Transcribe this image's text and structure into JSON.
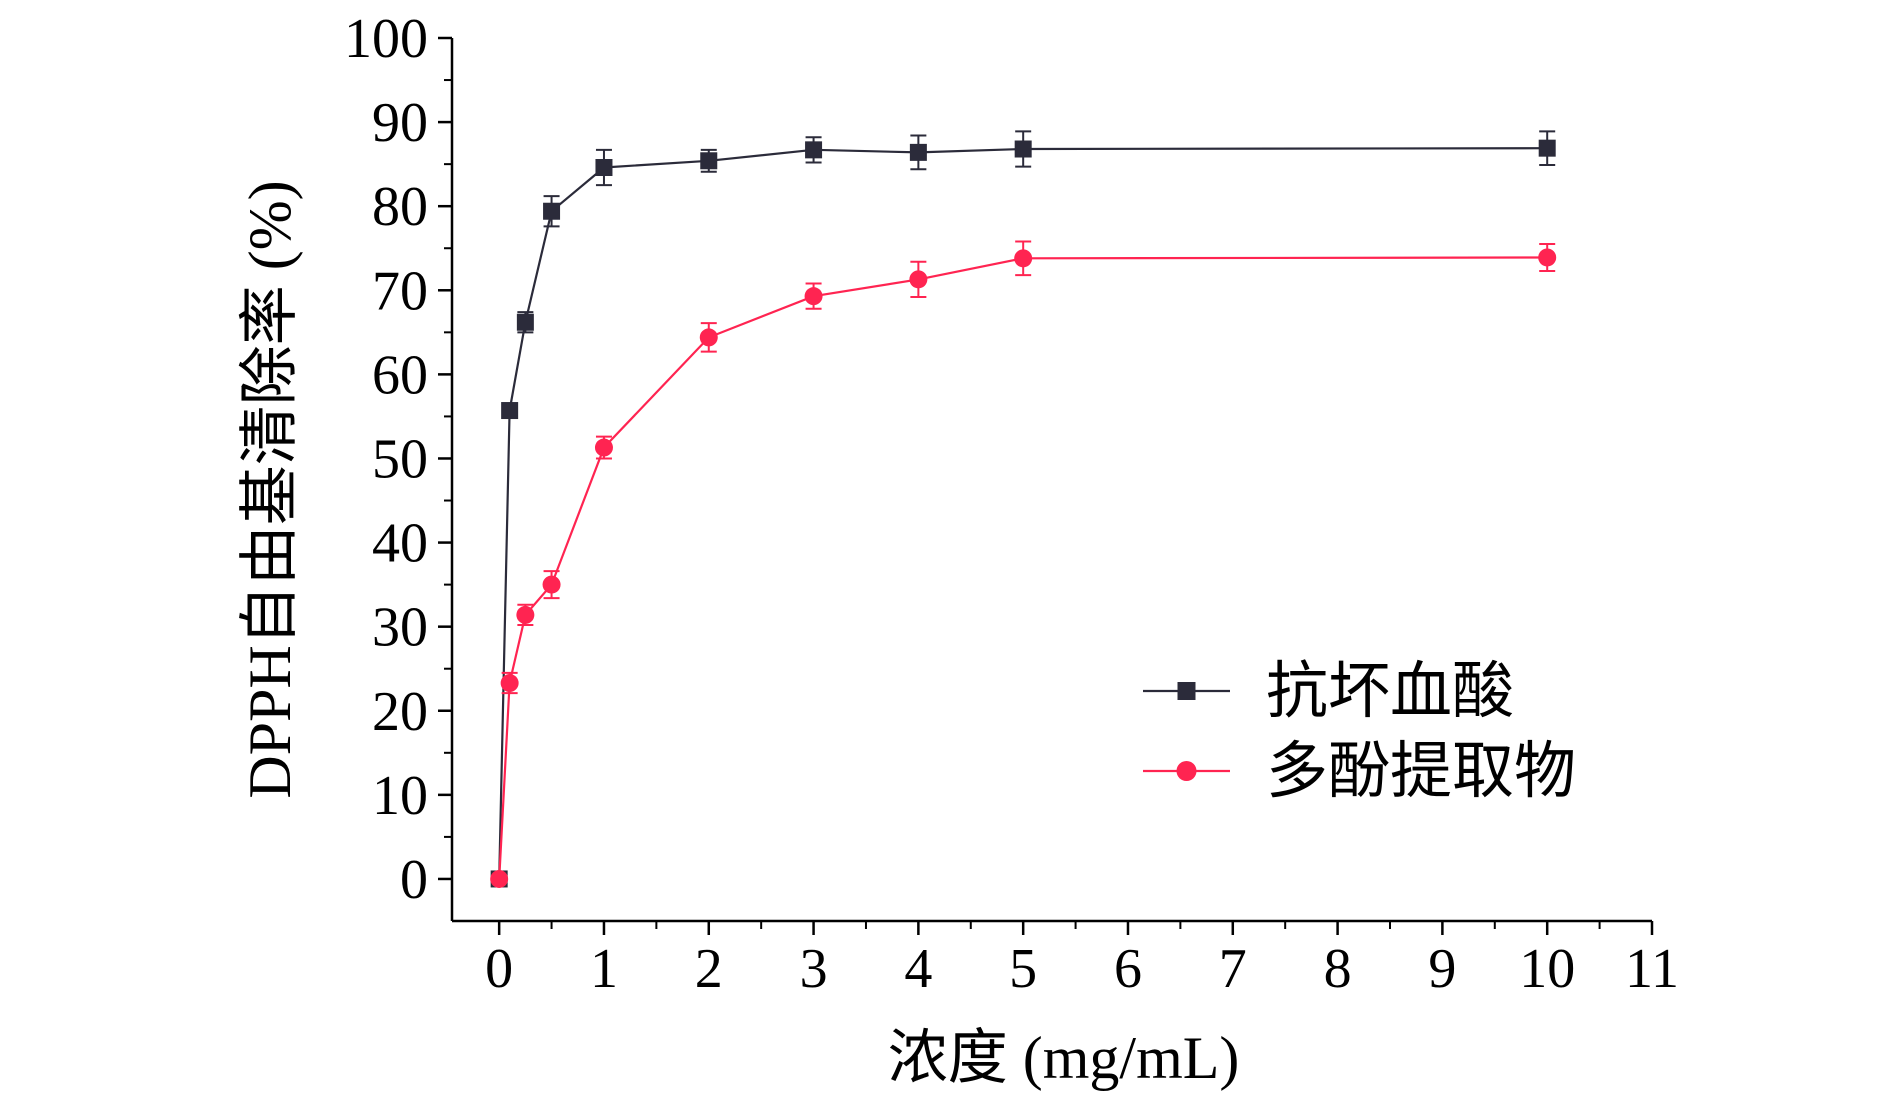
{
  "chart_data": {
    "type": "line",
    "title": "",
    "xlabel": "浓度 (mg/mL)",
    "ylabel": "DPPH自由基清除率 (%)",
    "xlim": [
      -0.45,
      11
    ],
    "ylim": [
      -5,
      100
    ],
    "x_ticks": [
      0,
      1,
      2,
      3,
      4,
      5,
      6,
      7,
      8,
      9,
      10,
      11
    ],
    "y_ticks": [
      0,
      10,
      20,
      30,
      40,
      50,
      60,
      70,
      80,
      90,
      100
    ],
    "x_tick_labels": [
      "0",
      "1",
      "2",
      "3",
      "4",
      "5",
      "6",
      "7",
      "8",
      "9",
      "10",
      "11"
    ],
    "y_tick_labels": [
      "0",
      "10",
      "20",
      "30",
      "40",
      "50",
      "60",
      "70",
      "80",
      "90",
      "100"
    ],
    "grid": false,
    "legend_position": "bottom-right",
    "series": [
      {
        "name": "抗坏血酸",
        "marker": "square",
        "color": "#2b2b3a",
        "x": [
          0,
          0.1,
          0.25,
          0.5,
          1,
          2,
          3,
          4,
          5,
          10
        ],
        "y": [
          0,
          55.7,
          66.2,
          79.4,
          84.6,
          85.4,
          86.7,
          86.4,
          86.8,
          86.9
        ],
        "error": [
          0,
          0.8,
          1.2,
          1.8,
          2.1,
          1.3,
          1.5,
          2.0,
          2.1,
          2.0
        ]
      },
      {
        "name": "多酚提取物",
        "marker": "circle",
        "color": "#ff2451",
        "x": [
          0,
          0.1,
          0.25,
          0.5,
          1,
          2,
          3,
          4,
          5,
          10
        ],
        "y": [
          0,
          23.3,
          31.4,
          35.0,
          51.3,
          64.4,
          69.3,
          71.3,
          73.8,
          73.9
        ],
        "error": [
          0,
          1.2,
          1.2,
          1.6,
          1.3,
          1.7,
          1.5,
          2.1,
          2.0,
          1.6
        ]
      }
    ]
  }
}
